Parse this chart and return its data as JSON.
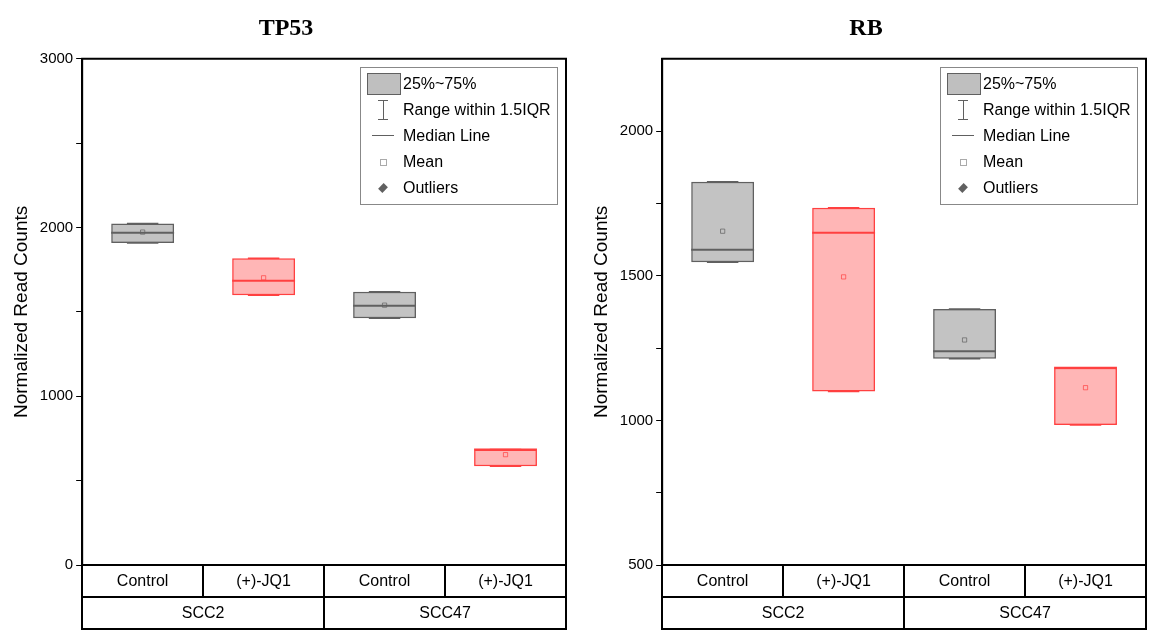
{
  "chart_data": [
    {
      "type": "box",
      "title": "TP53",
      "ylabel": "Normalized Read Counts",
      "categories": [
        "Control",
        "(+)-JQ1",
        "Control",
        "(+)-JQ1"
      ],
      "boxes": [
        {
          "low": 1909,
          "q1": 1909,
          "median": 1969,
          "q3": 2024,
          "high": 2024,
          "mean": 1973
        },
        {
          "low": 1599,
          "q1": 1599,
          "median": 1684,
          "q3": 1818,
          "high": 1818,
          "mean": 1702
        },
        {
          "low": 1463,
          "q1": 1463,
          "median": 1537,
          "q3": 1619,
          "high": 1619,
          "mean": 1540
        },
        {
          "low": 585,
          "q1": 585,
          "median": 685,
          "q3": 685,
          "high": 685,
          "mean": 654
        }
      ],
      "colors": [
        "#606060",
        "#ff4040",
        "#606060",
        "#ff4040"
      ],
      "ylim": [
        0,
        3000
      ],
      "yticks": [
        0,
        {
          "value": 500,
          "label": null
        },
        1000,
        {
          "value": 1500,
          "label": null
        },
        2000,
        {
          "value": 2500,
          "label": null
        },
        3000
      ],
      "marker": "square",
      "annotations": [
        "25%~75%",
        "Range within 1.5IQR",
        "Median Line",
        "Mean",
        "Outliers",
        "SCC2",
        "SCC47"
      ]
    },
    {
      "type": "box",
      "title": "RB",
      "ylabel": "Normalized Read Counts",
      "categories": [
        "Control",
        "(+)-JQ1",
        "Control",
        "(+)-JQ1"
      ],
      "boxes": [
        {
          "low": 1547,
          "q1": 1547,
          "median": 1590,
          "q3": 1825,
          "high": 1825,
          "mean": 1654
        },
        {
          "low": 1100,
          "q1": 1100,
          "median": 1649,
          "q3": 1735,
          "high": 1735,
          "mean": 1496
        },
        {
          "low": 1213,
          "q1": 1213,
          "median": 1239,
          "q3": 1385,
          "high": 1385,
          "mean": 1278
        },
        {
          "low": 984,
          "q1": 984,
          "median": 1182,
          "q3": 1182,
          "high": 1182,
          "mean": 1113
        }
      ],
      "colors": [
        "#606060",
        "#ff4040",
        "#606060",
        "#ff4040"
      ],
      "ylim": [
        500,
        2250
      ],
      "yticks": [
        500,
        {
          "value": 750,
          "label": null
        },
        1000,
        {
          "value": 1250,
          "label": null
        },
        1500,
        {
          "value": 1750,
          "label": null
        },
        2000
      ],
      "marker": "square",
      "annotations": [
        "25%~75%",
        "Range within 1.5IQR",
        "Median Line",
        "Mean",
        "Outliers",
        "SCC2",
        "SCC47"
      ]
    }
  ]
}
